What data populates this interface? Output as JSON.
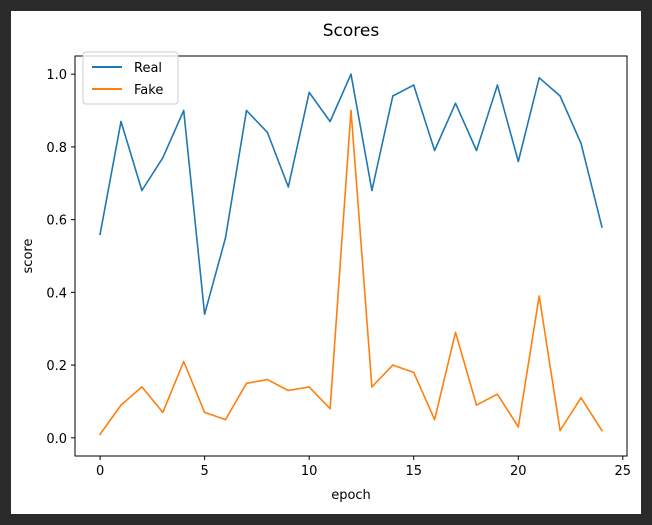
{
  "chart_data": {
    "type": "line",
    "title": "Scores",
    "xlabel": "epoch",
    "ylabel": "score",
    "xlim": [
      -1.2,
      25.2
    ],
    "ylim": [
      -0.05,
      1.05
    ],
    "xticks": [
      0,
      5,
      10,
      15,
      20,
      25
    ],
    "yticks": [
      0.0,
      0.2,
      0.4,
      0.6,
      0.8,
      1.0
    ],
    "xtick_labels": [
      "0",
      "5",
      "10",
      "15",
      "20",
      "25"
    ],
    "ytick_labels": [
      "0.0",
      "0.2",
      "0.4",
      "0.6",
      "0.8",
      "1.0"
    ],
    "grid": false,
    "legend_position": "top-left",
    "x": [
      0,
      1,
      2,
      3,
      4,
      5,
      6,
      7,
      8,
      9,
      10,
      11,
      12,
      13,
      14,
      15,
      16,
      17,
      18,
      19,
      20,
      21,
      22,
      23,
      24
    ],
    "series": [
      {
        "name": "Real",
        "color": "#1f77b4",
        "values": [
          0.56,
          0.87,
          0.68,
          0.77,
          0.9,
          0.34,
          0.55,
          0.9,
          0.84,
          0.69,
          0.95,
          0.87,
          1.0,
          0.68,
          0.94,
          0.97,
          0.79,
          0.92,
          0.79,
          0.97,
          0.76,
          0.99,
          0.94,
          0.81,
          0.58
        ]
      },
      {
        "name": "Fake",
        "color": "#ff7f0e",
        "values": [
          0.01,
          0.09,
          0.14,
          0.07,
          0.21,
          0.07,
          0.05,
          0.15,
          0.16,
          0.13,
          0.14,
          0.08,
          0.9,
          0.14,
          0.2,
          0.18,
          0.05,
          0.29,
          0.09,
          0.12,
          0.03,
          0.39,
          0.02,
          0.11,
          0.02
        ]
      }
    ]
  }
}
